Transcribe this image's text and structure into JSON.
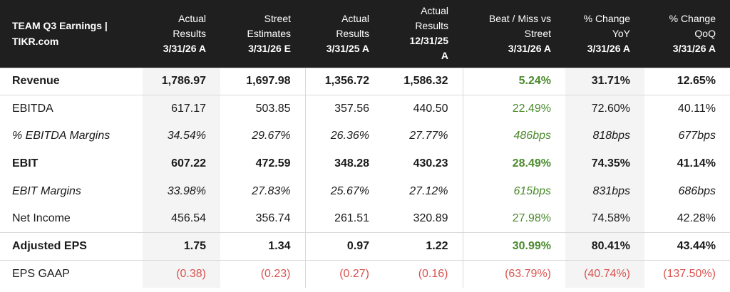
{
  "table": {
    "title_line1": "TEAM Q3 Earnings |",
    "title_line2": "TIKR.com",
    "columns": [
      {
        "line1": "Actual",
        "line2": "Results",
        "line3": "3/31/26 A"
      },
      {
        "line1": "Street",
        "line2": "Estimates",
        "line3": "3/31/26 E"
      },
      {
        "line1": "Actual",
        "line2": "Results",
        "line3": "3/31/25 A"
      },
      {
        "line1": "Actual",
        "line2": "Results",
        "line3": "12/31/25",
        "line4": "A"
      },
      {
        "line1": "Beat / Miss vs",
        "line2": "Street",
        "line3": "3/31/26 A"
      },
      {
        "line1": "% Change",
        "line2": "YoY",
        "line3": "3/31/26 A"
      },
      {
        "line1": "% Change",
        "line2": "QoQ",
        "line3": "3/31/26 A"
      }
    ],
    "rows": [
      {
        "label": "Revenue",
        "values": [
          "1,786.97",
          "1,697.98",
          "1,356.72",
          "1,586.32",
          "5.24%",
          "31.71%",
          "12.65%"
        ]
      },
      {
        "label": "EBITDA",
        "values": [
          "617.17",
          "503.85",
          "357.56",
          "440.50",
          "22.49%",
          "72.60%",
          "40.11%"
        ]
      },
      {
        "label": "% EBITDA Margins",
        "values": [
          "34.54%",
          "29.67%",
          "26.36%",
          "27.77%",
          "486bps",
          "818bps",
          "677bps"
        ]
      },
      {
        "label": "EBIT",
        "values": [
          "607.22",
          "472.59",
          "348.28",
          "430.23",
          "28.49%",
          "74.35%",
          "41.14%"
        ]
      },
      {
        "label": "EBIT Margins",
        "values": [
          "33.98%",
          "27.83%",
          "25.67%",
          "27.12%",
          "615bps",
          "831bps",
          "686bps"
        ]
      },
      {
        "label": "Net Income",
        "values": [
          "456.54",
          "356.74",
          "261.51",
          "320.89",
          "27.98%",
          "74.58%",
          "42.28%"
        ]
      },
      {
        "label": "Adjusted EPS",
        "values": [
          "1.75",
          "1.34",
          "0.97",
          "1.22",
          "30.99%",
          "80.41%",
          "43.44%"
        ]
      },
      {
        "label": "EPS GAAP",
        "values": [
          "(0.38)",
          "(0.23)",
          "(0.27)",
          "(0.16)",
          "(63.79%)",
          "(40.74%)",
          "(137.50%)"
        ]
      }
    ]
  },
  "colors": {
    "header_bg": "#1f1f1f",
    "positive": "#4a8a2c",
    "negative": "#d9534f",
    "shade": "#f4f4f4"
  }
}
